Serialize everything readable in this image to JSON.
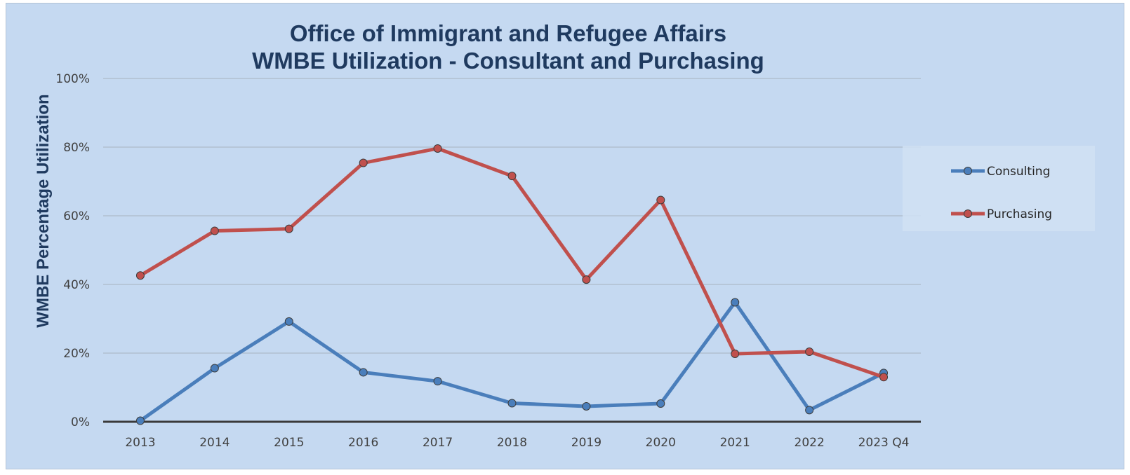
{
  "chart_data": {
    "type": "line",
    "title": [
      "Office of Immigrant and Refugee Affairs",
      "WMBE Utilization - Consultant and Purchasing"
    ],
    "xlabel": "",
    "ylabel": "WMBE Percentage Utilization",
    "categories": [
      "2013",
      "2014",
      "2015",
      "2016",
      "2017",
      "2018",
      "2019",
      "2020",
      "2021",
      "2022",
      "2023 Q4"
    ],
    "ylim": [
      0,
      100
    ],
    "yticks": [
      0,
      20,
      40,
      60,
      80,
      100
    ],
    "ytick_labels": [
      "0%",
      "20%",
      "40%",
      "60%",
      "80%",
      "100%"
    ],
    "grid": true,
    "legend_position": "right",
    "series": [
      {
        "name": "Consulting",
        "color": "#4a7ebb",
        "values": [
          0.3,
          15.6,
          29.2,
          14.4,
          11.8,
          5.4,
          4.5,
          5.3,
          34.8,
          3.4,
          14.2
        ]
      },
      {
        "name": "Purchasing",
        "color": "#c0504d",
        "values": [
          42.6,
          55.6,
          56.2,
          75.4,
          79.6,
          71.6,
          41.4,
          64.6,
          19.8,
          20.4,
          13.0
        ]
      }
    ]
  }
}
